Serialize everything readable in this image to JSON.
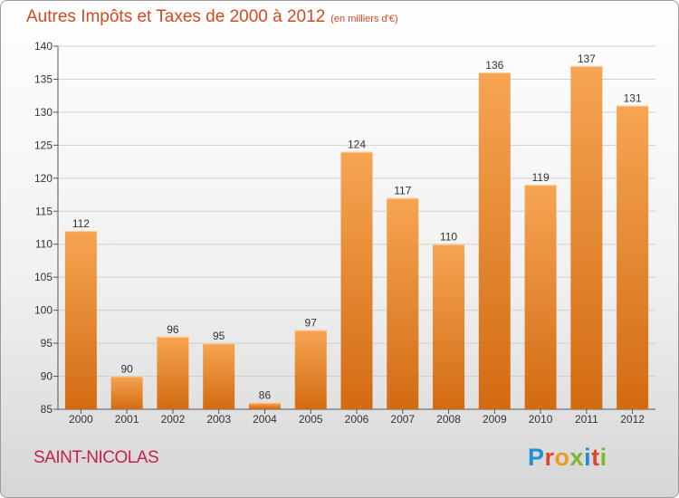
{
  "header": {
    "title": "Autres Impôts et Taxes de 2000 à 2012",
    "subtitle": "(en milliers d'€)"
  },
  "footer": {
    "commune": "SAINT-NICOLAS",
    "logo_text": "Proxiti",
    "logo_letter_colors": [
      "#1f8fd6",
      "#e0452b",
      "#f29a1f",
      "#7ab82e",
      "#1f8fd6",
      "#e0452b",
      "#7ab82e"
    ]
  },
  "colors": {
    "bar_light": "#f7a552",
    "bar_dark": "#d26b12",
    "title": "#d24a1e",
    "commune": "#c4224d",
    "grid": "#cfcfcf",
    "axis_text": "#333333"
  },
  "chart_data": {
    "type": "bar",
    "categories": [
      "2000",
      "2001",
      "2002",
      "2003",
      "2004",
      "2005",
      "2006",
      "2007",
      "2008",
      "2009",
      "2010",
      "2011",
      "2012"
    ],
    "values": [
      112,
      90,
      96,
      95,
      86,
      97,
      124,
      117,
      110,
      136,
      119,
      137,
      131
    ],
    "ylim": [
      85,
      140
    ],
    "yticks": [
      85,
      90,
      95,
      100,
      105,
      110,
      115,
      120,
      125,
      130,
      135,
      140
    ],
    "grid": true,
    "data_labels": true
  }
}
